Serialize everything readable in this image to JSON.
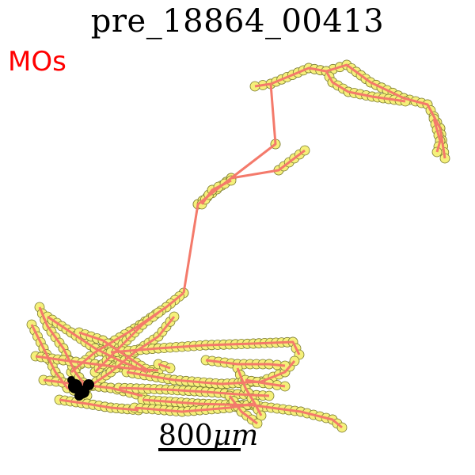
{
  "figure": {
    "title": "pre_18864_00413",
    "region_label": "MOs",
    "scale": {
      "value": "800",
      "unit": "μm"
    }
  },
  "colors": {
    "trace": "#f47a6b",
    "node_fill": "#f5f07a",
    "node_stroke": "#7a7a30",
    "soma": "#000000",
    "region_label": "#ff0000"
  }
}
